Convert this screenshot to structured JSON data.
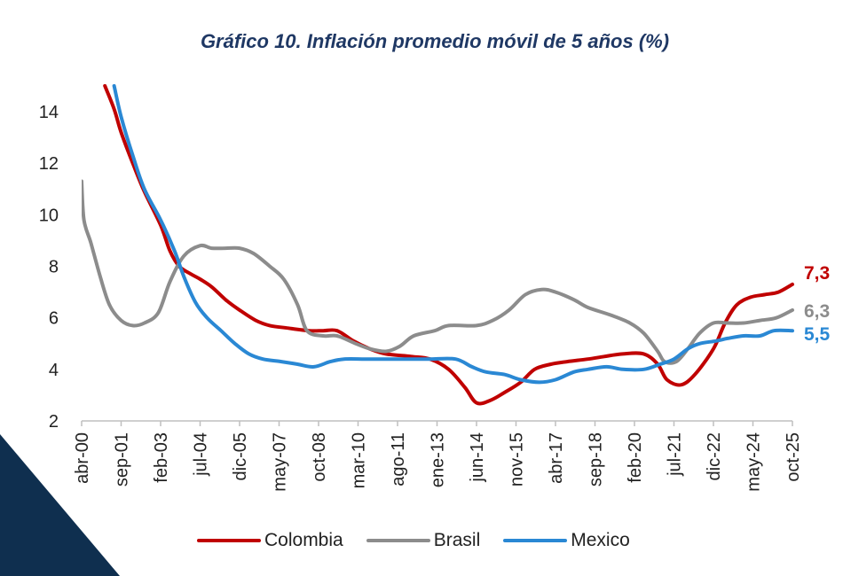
{
  "page": {
    "accent_color": "#0f2f4f"
  },
  "chart_data": {
    "type": "line",
    "title": "Gráfico 10. Inflación promedio móvil de 5 años (%)",
    "xlabel": "",
    "ylabel": "",
    "ylim": [
      2,
      15
    ],
    "yticks": [
      2,
      4,
      6,
      8,
      10,
      12,
      14
    ],
    "x_tick_labels": [
      "abr-00",
      "sep-01",
      "feb-03",
      "jul-04",
      "dic-05",
      "may-07",
      "oct-08",
      "mar-10",
      "ago-11",
      "ene-13",
      "jun-14",
      "nov-15",
      "abr-17",
      "sep-18",
      "feb-20",
      "jul-21",
      "dic-22",
      "may-24",
      "oct-25"
    ],
    "grid": false,
    "legend_position": "bottom",
    "series": [
      {
        "name": "Colombia",
        "color": "#c00000",
        "end_label": "7,3",
        "points": [
          [
            "2001-02",
            15.0
          ],
          [
            "2001-06",
            14.1
          ],
          [
            "2001-09",
            13.2
          ],
          [
            "2002-02",
            12.0
          ],
          [
            "2002-07",
            10.9
          ],
          [
            "2003-02",
            9.6
          ],
          [
            "2003-06",
            8.6
          ],
          [
            "2003-10",
            8.0
          ],
          [
            "2004-03",
            7.7
          ],
          [
            "2004-07",
            7.5
          ],
          [
            "2004-12",
            7.2
          ],
          [
            "2005-06",
            6.7
          ],
          [
            "2005-12",
            6.3
          ],
          [
            "2006-07",
            5.9
          ],
          [
            "2007-01",
            5.7
          ],
          [
            "2007-09",
            5.6
          ],
          [
            "2008-06",
            5.5
          ],
          [
            "2008-12",
            5.5
          ],
          [
            "2009-06",
            5.5
          ],
          [
            "2010-01",
            5.1
          ],
          [
            "2010-08",
            4.8
          ],
          [
            "2011-03",
            4.6
          ],
          [
            "2012-02",
            4.5
          ],
          [
            "2012-10",
            4.4
          ],
          [
            "2013-06",
            4.0
          ],
          [
            "2014-01",
            3.3
          ],
          [
            "2014-06",
            2.7
          ],
          [
            "2014-12",
            2.8
          ],
          [
            "2015-06",
            3.1
          ],
          [
            "2016-01",
            3.5
          ],
          [
            "2016-07",
            4.0
          ],
          [
            "2017-02",
            4.2
          ],
          [
            "2017-09",
            4.3
          ],
          [
            "2018-06",
            4.4
          ],
          [
            "2019-01",
            4.5
          ],
          [
            "2019-09",
            4.6
          ],
          [
            "2020-06",
            4.6
          ],
          [
            "2020-12",
            4.2
          ],
          [
            "2021-04",
            3.6
          ],
          [
            "2021-10",
            3.4
          ],
          [
            "2022-04",
            3.8
          ],
          [
            "2022-12",
            4.8
          ],
          [
            "2023-05",
            5.8
          ],
          [
            "2023-10",
            6.5
          ],
          [
            "2024-04",
            6.8
          ],
          [
            "2024-10",
            6.9
          ],
          [
            "2025-04",
            7.0
          ],
          [
            "2025-10",
            7.3
          ]
        ]
      },
      {
        "name": "Brasil",
        "color": "#8c8c8c",
        "end_label": "6,3",
        "points": [
          [
            "2000-04",
            11.3
          ],
          [
            "2000-05",
            9.8
          ],
          [
            "2000-08",
            8.9
          ],
          [
            "2000-12",
            7.6
          ],
          [
            "2001-04",
            6.5
          ],
          [
            "2001-09",
            5.9
          ],
          [
            "2002-02",
            5.7
          ],
          [
            "2002-07",
            5.8
          ],
          [
            "2003-01",
            6.2
          ],
          [
            "2003-06",
            7.4
          ],
          [
            "2003-12",
            8.4
          ],
          [
            "2004-07",
            8.8
          ],
          [
            "2004-12",
            8.7
          ],
          [
            "2005-06",
            8.7
          ],
          [
            "2005-12",
            8.7
          ],
          [
            "2006-06",
            8.5
          ],
          [
            "2007-01",
            8.0
          ],
          [
            "2007-07",
            7.5
          ],
          [
            "2008-01",
            6.5
          ],
          [
            "2008-05",
            5.5
          ],
          [
            "2008-12",
            5.3
          ],
          [
            "2009-06",
            5.3
          ],
          [
            "2010-02",
            5.0
          ],
          [
            "2010-08",
            4.8
          ],
          [
            "2011-03",
            4.7
          ],
          [
            "2011-09",
            4.9
          ],
          [
            "2012-03",
            5.3
          ],
          [
            "2012-12",
            5.5
          ],
          [
            "2013-06",
            5.7
          ],
          [
            "2014-06",
            5.7
          ],
          [
            "2015-01",
            5.9
          ],
          [
            "2015-08",
            6.3
          ],
          [
            "2016-03",
            6.9
          ],
          [
            "2016-10",
            7.1
          ],
          [
            "2017-04",
            7.0
          ],
          [
            "2017-12",
            6.7
          ],
          [
            "2018-06",
            6.4
          ],
          [
            "2019-04",
            6.1
          ],
          [
            "2019-12",
            5.8
          ],
          [
            "2020-06",
            5.4
          ],
          [
            "2020-12",
            4.7
          ],
          [
            "2021-03",
            4.3
          ],
          [
            "2021-08",
            4.3
          ],
          [
            "2022-01",
            4.8
          ],
          [
            "2022-06",
            5.4
          ],
          [
            "2022-12",
            5.8
          ],
          [
            "2023-06",
            5.8
          ],
          [
            "2024-01",
            5.8
          ],
          [
            "2024-08",
            5.9
          ],
          [
            "2025-03",
            6.0
          ],
          [
            "2025-10",
            6.3
          ]
        ]
      },
      {
        "name": "Mexico",
        "color": "#2a88d4",
        "end_label": "5,5",
        "points": [
          [
            "2001-06",
            15.0
          ],
          [
            "2001-09",
            13.8
          ],
          [
            "2002-02",
            12.3
          ],
          [
            "2002-07",
            11.0
          ],
          [
            "2003-02",
            9.8
          ],
          [
            "2003-08",
            8.6
          ],
          [
            "2003-12",
            7.6
          ],
          [
            "2004-05",
            6.6
          ],
          [
            "2004-10",
            6.0
          ],
          [
            "2005-04",
            5.5
          ],
          [
            "2005-10",
            5.0
          ],
          [
            "2006-04",
            4.6
          ],
          [
            "2006-10",
            4.4
          ],
          [
            "2007-06",
            4.3
          ],
          [
            "2008-01",
            4.2
          ],
          [
            "2008-08",
            4.1
          ],
          [
            "2009-03",
            4.3
          ],
          [
            "2009-09",
            4.4
          ],
          [
            "2010-06",
            4.4
          ],
          [
            "2011-03",
            4.4
          ],
          [
            "2012-01",
            4.4
          ],
          [
            "2012-10",
            4.4
          ],
          [
            "2013-09",
            4.4
          ],
          [
            "2014-04",
            4.1
          ],
          [
            "2014-10",
            3.9
          ],
          [
            "2015-06",
            3.8
          ],
          [
            "2016-01",
            3.6
          ],
          [
            "2016-09",
            3.5
          ],
          [
            "2017-04",
            3.6
          ],
          [
            "2017-12",
            3.9
          ],
          [
            "2018-06",
            4.0
          ],
          [
            "2019-02",
            4.1
          ],
          [
            "2019-09",
            4.0
          ],
          [
            "2020-06",
            4.0
          ],
          [
            "2021-01",
            4.2
          ],
          [
            "2021-07",
            4.4
          ],
          [
            "2022-01",
            4.8
          ],
          [
            "2022-06",
            5.0
          ],
          [
            "2023-01",
            5.1
          ],
          [
            "2023-06",
            5.2
          ],
          [
            "2024-01",
            5.3
          ],
          [
            "2024-08",
            5.3
          ],
          [
            "2025-02",
            5.5
          ],
          [
            "2025-10",
            5.5
          ]
        ]
      }
    ]
  }
}
